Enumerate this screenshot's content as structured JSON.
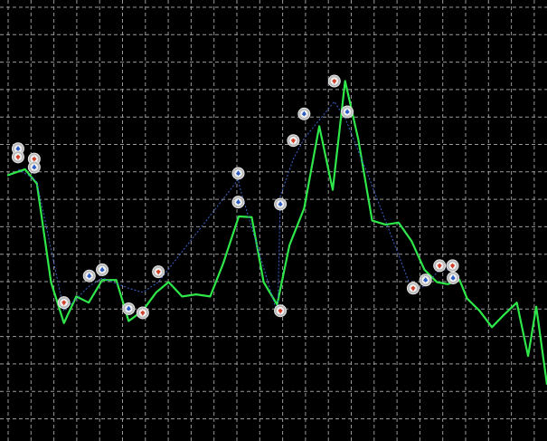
{
  "chart_data": {
    "type": "line",
    "title": "",
    "xlabel": "",
    "ylabel": "",
    "background": "#000000",
    "grid": true,
    "grid_color": "#9a9a9a",
    "ylim": [
      0,
      100
    ],
    "xlim": [
      0,
      100
    ],
    "series": [
      {
        "line_color": "#2ee84a",
        "line_style": "solid",
        "points": [
          [
            0,
            59
          ],
          [
            3.3,
            60.5
          ],
          [
            5.5,
            57
          ],
          [
            6.8,
            45
          ],
          [
            8.1,
            33
          ],
          [
            10.5,
            23
          ],
          [
            12.8,
            29.5
          ],
          [
            15.1,
            28
          ],
          [
            17.6,
            33.5
          ],
          [
            20.2,
            33.5
          ],
          [
            22.5,
            23.5
          ],
          [
            25.1,
            26
          ],
          [
            27.6,
            30.5
          ],
          [
            29.9,
            33
          ],
          [
            32.4,
            29.5
          ],
          [
            35.0,
            30
          ],
          [
            37.6,
            29.5
          ],
          [
            40.0,
            37.5
          ],
          [
            42.9,
            49
          ],
          [
            45.3,
            48.8
          ],
          [
            47.5,
            33
          ],
          [
            50.0,
            27.5
          ],
          [
            52.3,
            42
          ],
          [
            55.0,
            51
          ],
          [
            57.8,
            71
          ],
          [
            60.3,
            55.5
          ],
          [
            62.6,
            82
          ],
          [
            65.0,
            68
          ],
          [
            67.6,
            48
          ],
          [
            70.1,
            47
          ],
          [
            72.5,
            47.5
          ],
          [
            74.9,
            43
          ],
          [
            77.3,
            36
          ],
          [
            79.6,
            33
          ],
          [
            81.6,
            32.5
          ],
          [
            83.8,
            33.5
          ],
          [
            85.2,
            29
          ],
          [
            87.5,
            26
          ],
          [
            89.8,
            22
          ],
          [
            92.0,
            25
          ],
          [
            94.4,
            28
          ],
          [
            96.5,
            15
          ],
          [
            98.0,
            27
          ],
          [
            100.0,
            8
          ]
        ]
      },
      {
        "line_color": "#3d63c8",
        "line_style": "dotted",
        "points": [
          [
            2.1,
            60.5
          ],
          [
            4.5,
            58.5
          ],
          [
            5.5,
            57.5
          ],
          [
            10.5,
            26
          ],
          [
            15.2,
            32
          ],
          [
            17.6,
            34
          ],
          [
            22.5,
            31.5
          ],
          [
            25.1,
            30.5
          ],
          [
            28.0,
            33
          ],
          [
            42.8,
            58
          ],
          [
            43.1,
            56
          ],
          [
            50.1,
            25
          ],
          [
            50.6,
            54
          ],
          [
            53.0,
            63
          ],
          [
            55.0,
            68
          ],
          [
            60.6,
            77
          ],
          [
            62.6,
            73
          ],
          [
            67.0,
            58.5
          ],
          [
            75.0,
            31
          ],
          [
            77.3,
            32
          ],
          [
            80.1,
            36
          ],
          [
            82.5,
            36
          ],
          [
            83.8,
            34.5
          ]
        ]
      }
    ],
    "markers": [
      {
        "x": 2.0,
        "y": 65.5,
        "kind": "buy",
        "color": "#2f5fc4"
      },
      {
        "x": 2.0,
        "y": 63.5,
        "kind": "sell",
        "color": "#d2412a"
      },
      {
        "x": 5.0,
        "y": 63.0,
        "kind": "sell",
        "color": "#d2412a"
      },
      {
        "x": 5.0,
        "y": 61.0,
        "kind": "buy",
        "color": "#2f5fc4"
      },
      {
        "x": 10.5,
        "y": 28.0,
        "kind": "sell",
        "color": "#d2412a"
      },
      {
        "x": 15.2,
        "y": 34.5,
        "kind": "buy",
        "color": "#2f5fc4"
      },
      {
        "x": 17.6,
        "y": 36.0,
        "kind": "buy",
        "color": "#2f5fc4"
      },
      {
        "x": 22.5,
        "y": 26.5,
        "kind": "buy",
        "color": "#2f5fc4"
      },
      {
        "x": 25.1,
        "y": 25.5,
        "kind": "sell",
        "color": "#d2412a"
      },
      {
        "x": 28.0,
        "y": 35.5,
        "kind": "sell",
        "color": "#d2412a"
      },
      {
        "x": 42.8,
        "y": 59.5,
        "kind": "buy",
        "color": "#2f5fc4"
      },
      {
        "x": 42.8,
        "y": 52.5,
        "kind": "buy",
        "color": "#2f5fc4"
      },
      {
        "x": 50.6,
        "y": 26.0,
        "kind": "sell",
        "color": "#d2412a"
      },
      {
        "x": 50.6,
        "y": 52.0,
        "kind": "buy",
        "color": "#2f5fc4"
      },
      {
        "x": 53.0,
        "y": 67.5,
        "kind": "sell",
        "color": "#d2412a"
      },
      {
        "x": 55.0,
        "y": 74.0,
        "kind": "buy",
        "color": "#2f5fc4"
      },
      {
        "x": 60.6,
        "y": 82.0,
        "kind": "sell",
        "color": "#d2412a"
      },
      {
        "x": 63.0,
        "y": 74.5,
        "kind": "buy",
        "color": "#2f5fc4"
      },
      {
        "x": 75.2,
        "y": 31.5,
        "kind": "sell",
        "color": "#d2412a"
      },
      {
        "x": 77.5,
        "y": 33.5,
        "kind": "buy",
        "color": "#2f5fc4"
      },
      {
        "x": 80.1,
        "y": 37.0,
        "kind": "sell",
        "color": "#d2412a"
      },
      {
        "x": 82.5,
        "y": 37.0,
        "kind": "sell",
        "color": "#d2412a"
      },
      {
        "x": 82.6,
        "y": 34.0,
        "kind": "buy",
        "color": "#2f5fc4"
      }
    ]
  }
}
